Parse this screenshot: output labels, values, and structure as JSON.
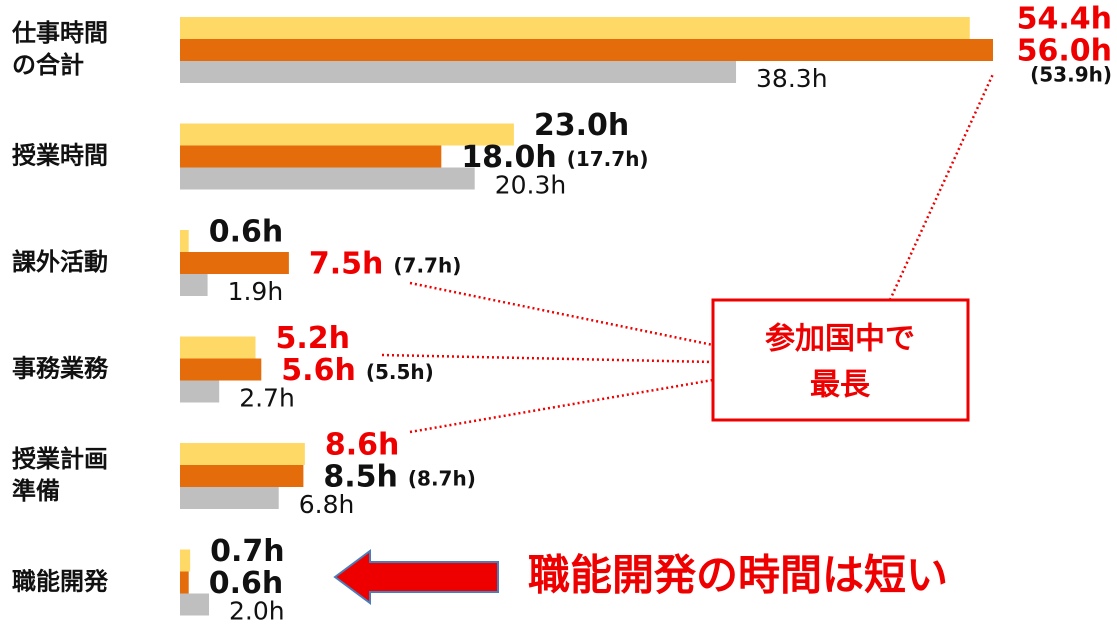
{
  "chart_data": {
    "type": "hbar",
    "categories": [
      [
        "仕事時間",
        "の合計"
      ],
      [
        "授業時間"
      ],
      [
        "課外活動"
      ],
      [
        "事務業務"
      ],
      [
        "授業計画",
        "準備"
      ],
      [
        "職能開発"
      ]
    ],
    "xlim": [
      0,
      56
    ],
    "series": [
      {
        "color": "#ffd966",
        "values": [
          54.4,
          23.0,
          0.6,
          5.2,
          8.6,
          0.7
        ],
        "value_labels": [
          "54.4h",
          "23.0h",
          "0.6h",
          "5.2h",
          "8.6h",
          "0.7h"
        ],
        "label_colors": [
          "#ee0000",
          "#111111",
          "#111111",
          "#ee0000",
          "#ee0000",
          "#111111"
        ]
      },
      {
        "color": "#e46c0a",
        "values": [
          56.0,
          18.0,
          7.5,
          5.6,
          8.5,
          0.6
        ],
        "value_labels": [
          "56.0h",
          "18.0h",
          "7.5h",
          "5.6h",
          "8.5h",
          "0.6h"
        ],
        "label_colors": [
          "#ee0000",
          "#111111",
          "#ee0000",
          "#ee0000",
          "#111111",
          "#111111"
        ],
        "secondary_values": [
          53.9,
          17.7,
          7.7,
          5.5,
          8.7,
          null
        ],
        "secondary_labels": [
          "(53.9h)",
          "(17.7h)",
          "(7.7h)",
          "(5.5h)",
          "(8.7h)",
          null
        ]
      },
      {
        "color": "#bfbfbf",
        "values": [
          38.3,
          20.3,
          1.9,
          2.7,
          6.8,
          2.0
        ],
        "value_labels": [
          "38.3h",
          "20.3h",
          "1.9h",
          "2.7h",
          "6.8h",
          "2.0h"
        ],
        "label_colors": [
          "#111111",
          "#111111",
          "#111111",
          "#111111",
          "#111111",
          "#111111"
        ]
      }
    ],
    "annotations": {
      "box": [
        "参加国中で",
        "最長"
      ],
      "arrow_text": "職能開発の時間は短い"
    }
  }
}
